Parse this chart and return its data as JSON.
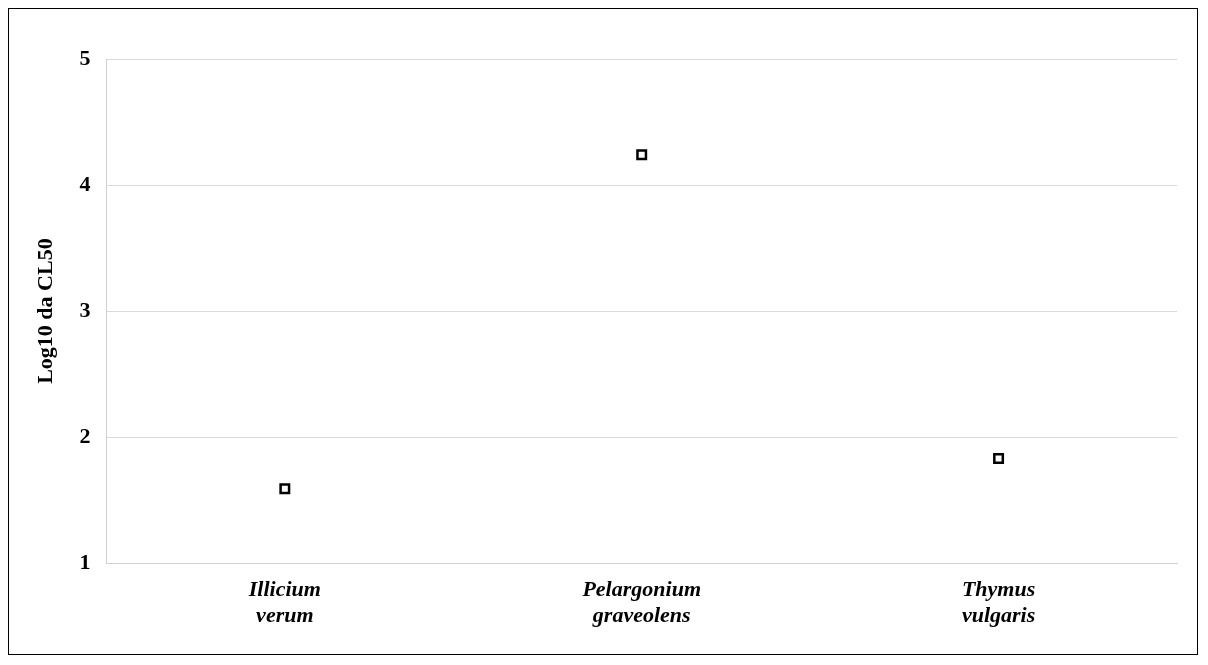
{
  "chart_data": {
    "type": "scatter",
    "ylabel": "Log10 da CL50",
    "categories": [
      "Illicium verum",
      "Pelargonium graveolens",
      "Thymus vulgaris"
    ],
    "series": [
      {
        "color": "#000000",
        "values": [
          1.59,
          4.24,
          1.83
        ]
      }
    ],
    "ylim": [
      1,
      5
    ],
    "yticks": [
      1,
      2,
      3,
      4,
      5
    ],
    "grid": "y",
    "legend": false,
    "marker": "square"
  }
}
